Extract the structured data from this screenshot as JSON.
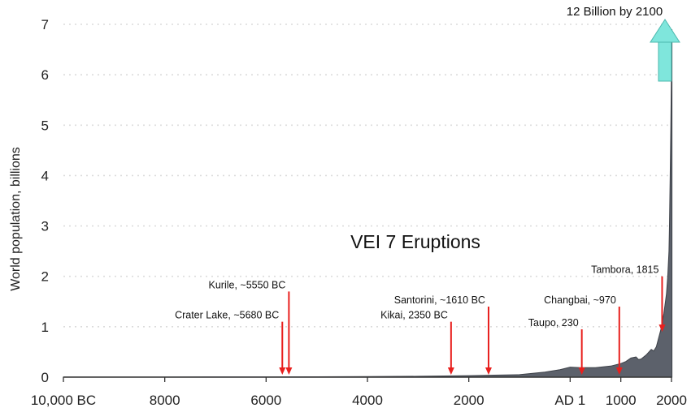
{
  "chart_data": {
    "type": "area",
    "title": "",
    "xlabel": "",
    "ylabel": "World population, billions",
    "xlim": [
      -10000,
      2000
    ],
    "ylim": [
      0,
      7
    ],
    "grid": true,
    "x_ticks": [
      {
        "value": -10000,
        "label": "10,000 BC"
      },
      {
        "value": -8000,
        "label": "8000"
      },
      {
        "value": -6000,
        "label": "6000"
      },
      {
        "value": -4000,
        "label": "4000"
      },
      {
        "value": -2000,
        "label": "2000"
      },
      {
        "value": 0,
        "label": "AD 1"
      },
      {
        "value": 1000,
        "label": "1000"
      },
      {
        "value": 2000,
        "label": "2000"
      }
    ],
    "y_ticks": [
      0,
      1,
      2,
      3,
      4,
      5,
      6,
      7
    ],
    "series": [
      {
        "x": [
          -10000,
          -8000,
          -6000,
          -5000,
          -4000,
          -3000,
          -2000,
          -1500,
          -1000,
          -500,
          -200,
          1,
          200,
          500,
          800,
          1000,
          1100,
          1200,
          1300,
          1350,
          1400,
          1500,
          1600,
          1650,
          1700,
          1750,
          1800,
          1850,
          1900,
          1927,
          1950,
          1960,
          1974,
          1987,
          1999,
          2010
        ],
        "values": [
          0.004,
          0.005,
          0.006,
          0.008,
          0.012,
          0.018,
          0.03,
          0.04,
          0.05,
          0.1,
          0.15,
          0.2,
          0.19,
          0.19,
          0.22,
          0.27,
          0.31,
          0.38,
          0.4,
          0.35,
          0.36,
          0.44,
          0.55,
          0.52,
          0.6,
          0.79,
          0.98,
          1.26,
          1.65,
          2.0,
          2.5,
          3.0,
          4.0,
          5.0,
          6.0,
          6.9
        ]
      }
    ],
    "arrow_annotation": {
      "text": "12 Billion by 2100",
      "color": "#7fe6dc"
    },
    "center_annotation": "VEI 7 Eruptions",
    "eruptions": [
      {
        "label": "Kurile, ~5550 BC",
        "x": -5550,
        "top": 1.7
      },
      {
        "label": "Crater Lake, ~5680 BC",
        "x": -5680,
        "top": 1.1
      },
      {
        "label": "Kikai, 2350 BC",
        "x": -2350,
        "top": 1.1
      },
      {
        "label": "Santorini, ~1610 BC",
        "x": -1610,
        "top": 1.4
      },
      {
        "label": "Taupo, 230",
        "x": 230,
        "top": 0.95
      },
      {
        "label": "Changbai, ~970",
        "x": 970,
        "top": 1.4
      },
      {
        "label": "Tambora, 1815",
        "x": 1815,
        "top": 2.0
      }
    ]
  }
}
